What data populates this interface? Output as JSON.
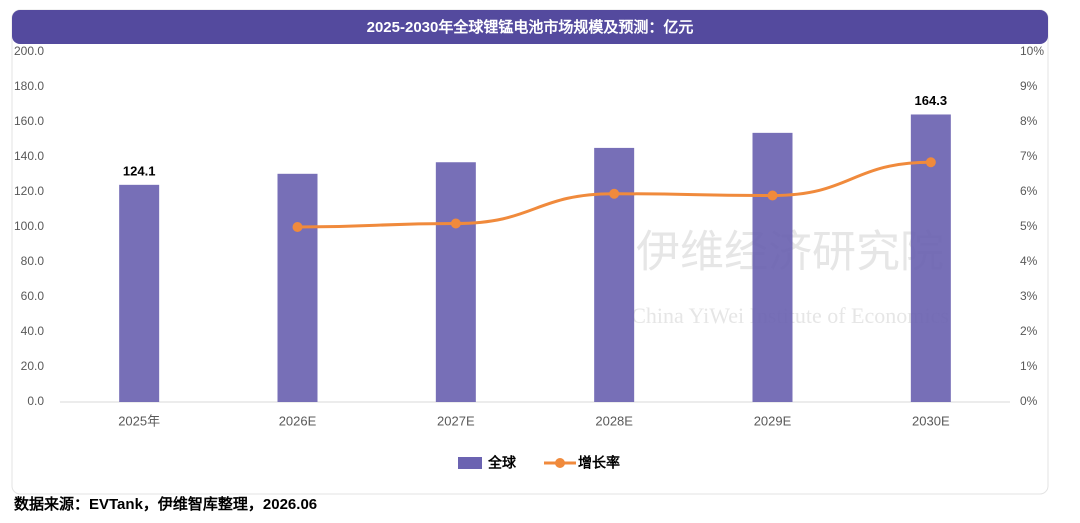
{
  "chart_data": {
    "type": "bar_line",
    "title": "2025-2030年全球锂锰电池市场规模及预测：亿元",
    "categories": [
      "2025年",
      "2026E",
      "2027E",
      "2028E",
      "2029E",
      "2030E"
    ],
    "series": [
      {
        "name": "全球",
        "type": "bar",
        "color": "#6b63b1",
        "values": [
          124.1,
          130.4,
          137.0,
          145.2,
          153.8,
          164.3
        ],
        "value_labels": [
          "124.1",
          null,
          null,
          null,
          null,
          "164.3"
        ]
      },
      {
        "name": "增长率",
        "type": "line",
        "axis": "y2",
        "color": "#f08a3c",
        "values": [
          null,
          5.0,
          5.1,
          5.95,
          5.9,
          6.85
        ]
      }
    ],
    "ylim": [
      0,
      200
    ],
    "yticks": [
      {
        "value": 0,
        "label": "0.0"
      },
      {
        "value": 20,
        "label": "20.0"
      },
      {
        "value": 40,
        "label": "40.0"
      },
      {
        "value": 60,
        "label": "60.0"
      },
      {
        "value": 80,
        "label": "80.0"
      },
      {
        "value": 100,
        "label": "100.0"
      },
      {
        "value": 120,
        "label": "120.0"
      },
      {
        "value": 140,
        "label": "140.0"
      },
      {
        "value": 160,
        "label": "160.0"
      },
      {
        "value": 180,
        "label": "180.0"
      },
      {
        "value": 200,
        "label": "200.0"
      }
    ],
    "y2lim": [
      0,
      10
    ],
    "y2ticks": [
      {
        "value": 0,
        "label": "0%"
      },
      {
        "value": 1,
        "label": "1%"
      },
      {
        "value": 2,
        "label": "2%"
      },
      {
        "value": 3,
        "label": "3%"
      },
      {
        "value": 4,
        "label": "4%"
      },
      {
        "value": 5,
        "label": "5%"
      },
      {
        "value": 6,
        "label": "6%"
      },
      {
        "value": 7,
        "label": "7%"
      },
      {
        "value": 8,
        "label": "8%"
      },
      {
        "value": 9,
        "label": "9%"
      },
      {
        "value": 10,
        "label": "10%"
      }
    ],
    "grid": false,
    "legend": "bottom",
    "watermark": [
      "伊维经济研究院",
      "China YiWei Institute of Economics"
    ],
    "source": "数据来源：EVTank，伊维智库整理，2026.06"
  }
}
